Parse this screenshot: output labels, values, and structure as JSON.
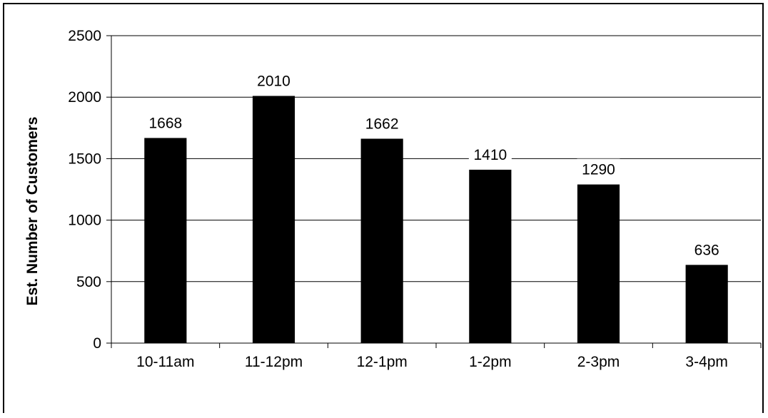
{
  "chart_data": {
    "type": "bar",
    "title": "",
    "xlabel": "",
    "ylabel": "Est. Number of Customers",
    "categories": [
      "10-11am",
      "11-12pm",
      "12-1pm",
      "1-2pm",
      "2-3pm",
      "3-4pm"
    ],
    "values": [
      1668,
      2010,
      1662,
      1410,
      1290,
      636
    ],
    "ylim": [
      0,
      2500
    ],
    "yticks": [
      0,
      500,
      1000,
      1500,
      2000,
      2500
    ],
    "grid": true,
    "legend": "none",
    "bar_color": "#000000",
    "grid_color": "#000000"
  }
}
